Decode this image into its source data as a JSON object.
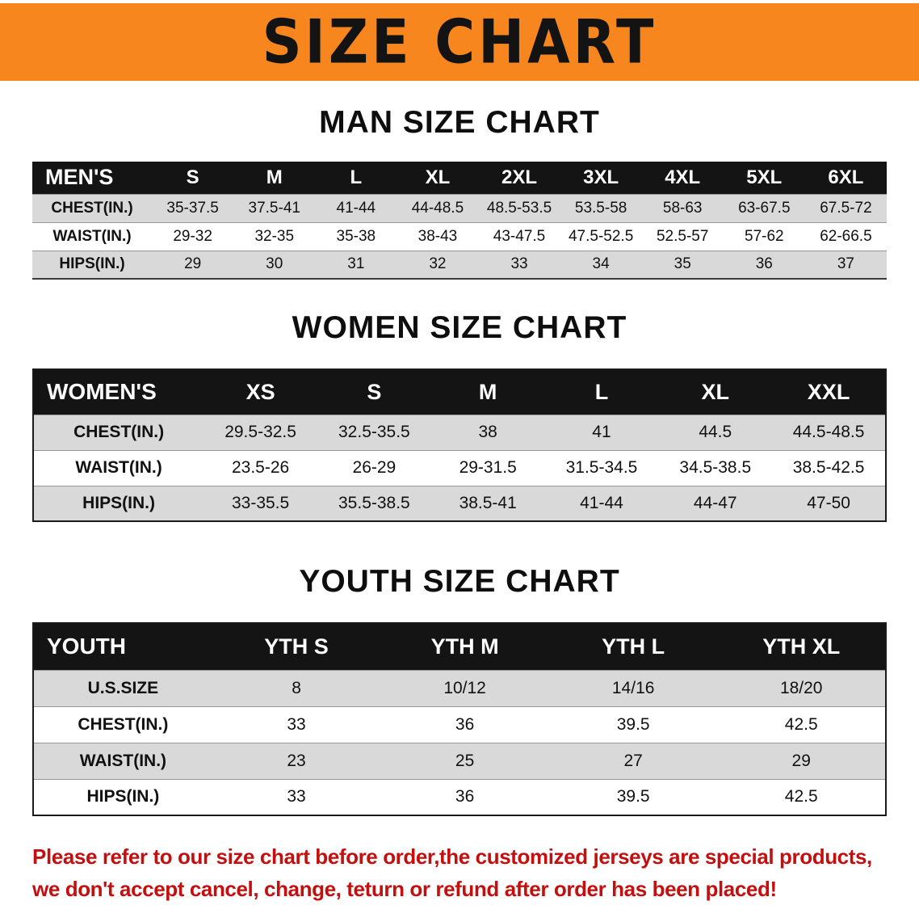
{
  "banner": {
    "title": "SIZE CHART",
    "bg_color": "#F6861D",
    "text_color": "#131313"
  },
  "sections": [
    {
      "id": "men",
      "heading": "MAN SIZE CHART",
      "table": {
        "header": [
          "MEN'S",
          "S",
          "M",
          "L",
          "XL",
          "2XL",
          "3XL",
          "4XL",
          "5XL",
          "6XL"
        ],
        "rows": [
          [
            "CHEST(IN.)",
            "35-37.5",
            "37.5-41",
            "41-44",
            "44-48.5",
            "48.5-53.5",
            "53.5-58",
            "58-63",
            "63-67.5",
            "67.5-72"
          ],
          [
            "WAIST(IN.)",
            "29-32",
            "32-35",
            "35-38",
            "38-43",
            "43-47.5",
            "47.5-52.5",
            "52.5-57",
            "57-62",
            "62-66.5"
          ],
          [
            "HIPS(IN.)",
            "29",
            "30",
            "31",
            "32",
            "33",
            "34",
            "35",
            "36",
            "37"
          ]
        ]
      }
    },
    {
      "id": "women",
      "heading": "WOMEN SIZE CHART",
      "table": {
        "header": [
          "WOMEN'S",
          "XS",
          "S",
          "M",
          "L",
          "XL",
          "XXL"
        ],
        "rows": [
          [
            "CHEST(IN.)",
            "29.5-32.5",
            "32.5-35.5",
            "38",
            "41",
            "44.5",
            "44.5-48.5"
          ],
          [
            "WAIST(IN.)",
            "23.5-26",
            "26-29",
            "29-31.5",
            "31.5-34.5",
            "34.5-38.5",
            "38.5-42.5"
          ],
          [
            "HIPS(IN.)",
            "33-35.5",
            "35.5-38.5",
            "38.5-41",
            "41-44",
            "44-47",
            "47-50"
          ]
        ]
      }
    },
    {
      "id": "youth",
      "heading": "YOUTH SIZE CHART",
      "table": {
        "header": [
          "YOUTH",
          "YTH S",
          "YTH M",
          "YTH L",
          "YTH XL"
        ],
        "rows": [
          [
            "U.S.SIZE",
            "8",
            "10/12",
            "14/16",
            "18/20"
          ],
          [
            "CHEST(IN.)",
            "33",
            "36",
            "39.5",
            "42.5"
          ],
          [
            "WAIST(IN.)",
            "23",
            "25",
            "27",
            "29"
          ],
          [
            "HIPS(IN.)",
            "33",
            "36",
            "39.5",
            "42.5"
          ]
        ]
      }
    }
  ],
  "disclaimer": {
    "color": "#C40F0F",
    "lines": [
      "Please refer to our size chart before order,the customized jerseys are special products,",
      "we don't accept cancel, change, teturn or refund after order has been placed!"
    ]
  }
}
